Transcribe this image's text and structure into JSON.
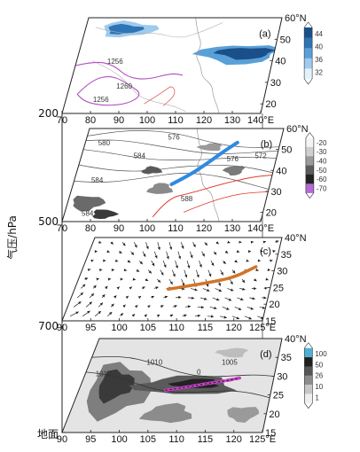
{
  "chart_data": {
    "type": "map_panels",
    "ylabel": "气压/hPa",
    "pressure_levels": [
      "200",
      "500",
      "700",
      "地面"
    ],
    "panels": [
      {
        "id": "a",
        "label": "(a)",
        "x_ticks": [
          "70",
          "80",
          "90",
          "100",
          "110",
          "120",
          "130",
          "140°E"
        ],
        "y_ticks": [
          "60°N",
          "50",
          "40",
          "30",
          "20"
        ],
        "colorbar": {
          "ticks": [
            "44",
            "40",
            "36",
            "32"
          ],
          "colors": [
            "#1a4f8a",
            "#2f74b5",
            "#5aa0d8",
            "#9fcbee",
            "#e3f1fb"
          ]
        },
        "contour_labels": [
          "1256",
          "1260",
          "1256"
        ],
        "contour_color": "#b04fc0",
        "jet_color": "#2f74b5"
      },
      {
        "id": "b",
        "label": "(b)",
        "x_ticks": [
          "70",
          "80",
          "90",
          "100",
          "110",
          "120",
          "130",
          "140°E"
        ],
        "y_ticks": [
          "60°N",
          "50",
          "40",
          "30",
          "20"
        ],
        "colorbar": {
          "ticks": [
            "-20",
            "-30",
            "-40",
            "-50",
            "-60",
            "-70"
          ],
          "colors": [
            "#f4f4f4",
            "#cfcfcf",
            "#9a9a9a",
            "#5c5c5c",
            "#222222",
            "#b66ad6"
          ]
        },
        "contour_labels": [
          "576",
          "580",
          "584",
          "584",
          "576",
          "572",
          "588",
          "584"
        ],
        "trough_color": "#2f8ae0",
        "ridge_color": "#e0392b"
      },
      {
        "id": "c",
        "label": "(c)",
        "x_ticks": [
          "90",
          "95",
          "100",
          "105",
          "110",
          "115",
          "120",
          "125°E"
        ],
        "y_ticks": [
          "40°N",
          "35",
          "30",
          "25",
          "20",
          "15"
        ],
        "shear_color": "#d0752a"
      },
      {
        "id": "d",
        "label": "(d)",
        "x_ticks": [
          "90",
          "95",
          "100",
          "105",
          "110",
          "115",
          "120",
          "125°E"
        ],
        "y_ticks": [
          "40°N",
          "35",
          "30",
          "25",
          "20",
          "15"
        ],
        "colorbar": {
          "ticks": [
            "100",
            "50",
            "26",
            "10",
            "1"
          ],
          "colors": [
            "#4fb0d6",
            "#1f1f1f",
            "#555555",
            "#8c8c8c",
            "#c7c7c7",
            "#eeeeee"
          ]
        },
        "contour_labels": [
          "1010",
          "1010",
          "1005",
          "0"
        ],
        "front_color": "#c040c0"
      }
    ]
  }
}
